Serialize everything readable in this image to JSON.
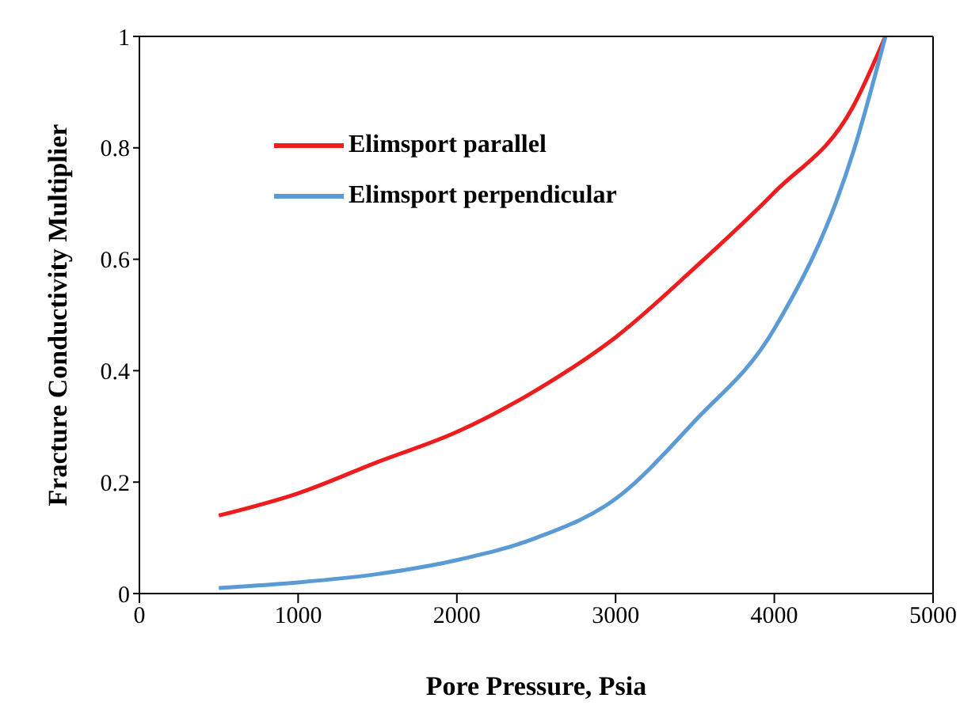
{
  "chart_data": {
    "type": "line",
    "xlabel": "Pore Pressure, Psia",
    "ylabel": "Fracture Conductivity Multiplier",
    "x": [
      500,
      1000,
      1500,
      2000,
      2500,
      3000,
      3500,
      4000,
      4500,
      4700
    ],
    "series": [
      {
        "name": "Elimsport parallel",
        "color": "#ee1c1c",
        "values": [
          0.14,
          0.18,
          0.236,
          0.29,
          0.365,
          0.46,
          0.585,
          0.72,
          0.876,
          1.0
        ]
      },
      {
        "name": "Elimsport perpendicular",
        "color": "#5b9bd5",
        "values": [
          0.01,
          0.02,
          0.035,
          0.06,
          0.1,
          0.17,
          0.31,
          0.475,
          0.795,
          1.0
        ]
      }
    ],
    "xlim": [
      0,
      5000
    ],
    "xticks": [
      0,
      1000,
      2000,
      3000,
      4000,
      5000
    ],
    "ylim": [
      0,
      1
    ],
    "yticks": [
      0,
      0.2,
      0.4,
      0.6,
      0.8,
      1
    ],
    "grid": false,
    "legend": "top left",
    "marker": "none",
    "line_style": "solid"
  }
}
